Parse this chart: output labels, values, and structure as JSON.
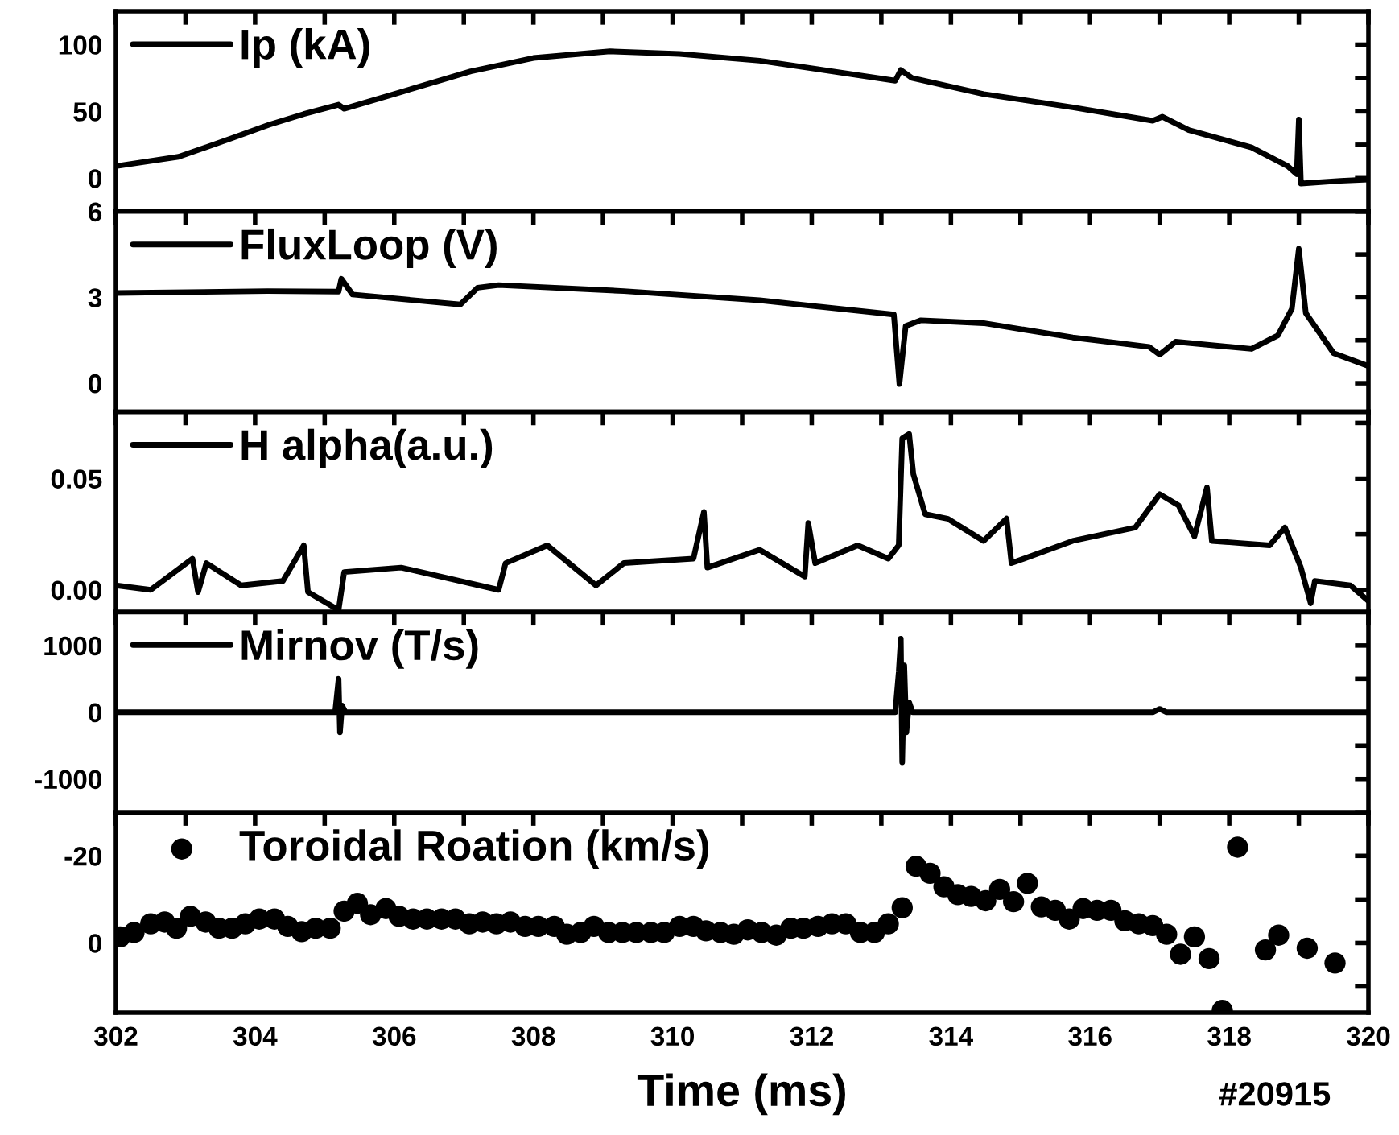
{
  "chart_data": [
    {
      "type": "line",
      "xlim": [
        302,
        320
      ],
      "xticks": [
        302,
        {
          "value": 303,
          "label": null
        },
        304,
        {
          "value": 305,
          "label": null
        },
        306,
        {
          "value": 307,
          "label": null
        },
        308,
        {
          "value": 309,
          "label": null
        },
        310,
        {
          "value": 311,
          "label": null
        },
        312,
        {
          "value": 313,
          "label": null
        },
        314,
        {
          "value": 315,
          "label": null
        },
        316,
        {
          "value": 317,
          "label": null
        },
        318,
        {
          "value": 319,
          "label": null
        },
        320
      ],
      "ylim": [
        -25,
        125
      ],
      "yticks": [
        0,
        {
          "value": 25,
          "label": null
        },
        50,
        {
          "value": 75,
          "label": null
        },
        100
      ],
      "tick_labels": "y",
      "legend": "top left",
      "x": [
        302,
        302.9,
        303.67,
        304.2,
        304.7,
        305.2,
        305.28,
        306,
        307.1,
        308.0,
        309.1,
        310.1,
        311.25,
        313.2,
        313.28,
        313.44,
        314.47,
        315.75,
        316.9,
        317.04,
        317.42,
        318.32,
        318.84,
        318.97,
        319.0,
        319.03,
        319.6,
        320
      ],
      "series": [
        {
          "name": "Ip (kA)",
          "color": "#000000",
          "values": [
            9,
            16,
            30,
            40,
            48,
            55,
            52,
            63,
            80,
            90,
            95,
            93,
            88,
            73,
            81,
            75,
            63,
            53,
            43,
            46,
            36,
            23,
            9,
            3,
            44,
            -4,
            -2,
            -1
          ]
        }
      ]
    },
    {
      "type": "line",
      "xlim": [
        302,
        320
      ],
      "xticks": [
        302,
        {
          "value": 303,
          "label": null
        },
        304,
        {
          "value": 305,
          "label": null
        },
        306,
        {
          "value": 307,
          "label": null
        },
        308,
        {
          "value": 309,
          "label": null
        },
        310,
        {
          "value": 311,
          "label": null
        },
        312,
        {
          "value": 313,
          "label": null
        },
        314,
        {
          "value": 315,
          "label": null
        },
        316,
        {
          "value": 317,
          "label": null
        },
        318,
        {
          "value": 319,
          "label": null
        },
        320
      ],
      "ylim": [
        -1,
        6
      ],
      "yticks": [
        0,
        {
          "value": 1.5,
          "label": null
        },
        3,
        {
          "value": 4.5,
          "label": null
        },
        6
      ],
      "tick_labels": "y",
      "legend": "top left",
      "x": [
        302,
        304.18,
        305.2,
        305.24,
        305.4,
        306.95,
        307.2,
        307.5,
        309.3,
        311.25,
        313.18,
        313.26,
        313.35,
        313.57,
        314.47,
        315.75,
        316.85,
        317.0,
        317.23,
        318.32,
        318.7,
        318.9,
        319.0,
        319.1,
        319.5,
        320
      ],
      "series": [
        {
          "name": "FluxLoop (V)",
          "color": "#000000",
          "values": [
            3.15,
            3.22,
            3.2,
            3.65,
            3.1,
            2.75,
            3.34,
            3.43,
            3.22,
            2.9,
            2.4,
            -0.03,
            2.0,
            2.2,
            2.1,
            1.6,
            1.27,
            1.0,
            1.45,
            1.2,
            1.67,
            2.6,
            4.7,
            2.45,
            1.05,
            0.6
          ]
        }
      ]
    },
    {
      "type": "line",
      "xlim": [
        302,
        320
      ],
      "xticks": [
        302,
        {
          "value": 303,
          "label": null
        },
        304,
        {
          "value": 305,
          "label": null
        },
        306,
        {
          "value": 307,
          "label": null
        },
        308,
        {
          "value": 309,
          "label": null
        },
        310,
        {
          "value": 311,
          "label": null
        },
        312,
        {
          "value": 313,
          "label": null
        },
        314,
        {
          "value": 315,
          "label": null
        },
        316,
        {
          "value": 317,
          "label": null
        },
        318,
        {
          "value": 319,
          "label": null
        },
        320
      ],
      "ylim": [
        -0.01,
        0.08
      ],
      "yticks": [
        {
          "value": 0,
          "label": "0.00"
        },
        {
          "value": 0.025,
          "label": null
        },
        0.05,
        {
          "value": 0.075,
          "label": null
        }
      ],
      "tick_labels": "y",
      "legend": "top left",
      "x": [
        302,
        302.5,
        303.1,
        303.18,
        303.3,
        303.8,
        304.4,
        304.7,
        304.76,
        305.2,
        305.28,
        306.1,
        307.5,
        307.6,
        308.2,
        308.9,
        309.3,
        310.3,
        310.45,
        310.5,
        311.25,
        311.9,
        311.95,
        312.05,
        312.66,
        313.1,
        313.25,
        313.3,
        313.4,
        313.46,
        313.63,
        313.95,
        314.47,
        314.8,
        314.87,
        315.75,
        316.65,
        317.0,
        317.27,
        317.5,
        317.68,
        317.75,
        318.58,
        318.8,
        319.03,
        319.17,
        319.23,
        319.74,
        320
      ],
      "series": [
        {
          "name": "H alpha(a.u.)",
          "color": "#000000",
          "values": [
            0.002,
            0,
            0.014,
            -0.001,
            0.012,
            0.002,
            0.004,
            0.02,
            -0.001,
            -0.009,
            0.008,
            0.01,
            0,
            0.012,
            0.02,
            0.002,
            0.012,
            0.014,
            0.035,
            0.01,
            0.018,
            0.006,
            0.03,
            0.012,
            0.02,
            0.014,
            0.02,
            0.068,
            0.07,
            0.052,
            0.034,
            0.032,
            0.022,
            0.032,
            0.012,
            0.022,
            0.028,
            0.043,
            0.038,
            0.024,
            0.046,
            0.022,
            0.02,
            0.028,
            0.01,
            -0.006,
            0.004,
            0.002,
            -0.005
          ]
        }
      ]
    },
    {
      "type": "line",
      "xlim": [
        302,
        320
      ],
      "xticks": [
        302,
        {
          "value": 303,
          "label": null
        },
        304,
        {
          "value": 305,
          "label": null
        },
        306,
        {
          "value": 307,
          "label": null
        },
        308,
        {
          "value": 309,
          "label": null
        },
        310,
        {
          "value": 311,
          "label": null
        },
        312,
        {
          "value": 313,
          "label": null
        },
        314,
        {
          "value": 315,
          "label": null
        },
        316,
        {
          "value": 317,
          "label": null
        },
        318,
        {
          "value": 319,
          "label": null
        },
        320
      ],
      "ylim": [
        -1500,
        1500
      ],
      "yticks": [
        -1000,
        {
          "value": -500,
          "label": null
        },
        0,
        {
          "value": 500,
          "label": null
        },
        1000
      ],
      "tick_labels": "y",
      "legend": "top left",
      "x": [
        302,
        305.15,
        305.2,
        305.22,
        305.25,
        305.3,
        313.2,
        313.25,
        313.28,
        313.3,
        313.33,
        313.36,
        313.4,
        313.45,
        316.9,
        317.0,
        317.1,
        320
      ],
      "series": [
        {
          "name": "Mirnov (T/s)",
          "color": "#000000",
          "values": [
            0,
            0,
            500,
            -300,
            100,
            0,
            0,
            600,
            1100,
            -750,
            700,
            -300,
            150,
            0,
            0,
            50,
            0,
            0
          ]
        }
      ]
    },
    {
      "type": "scatter",
      "xlim": [
        302,
        320
      ],
      "xticks": [
        302,
        {
          "value": 303,
          "label": null
        },
        304,
        {
          "value": 305,
          "label": null
        },
        306,
        {
          "value": 307,
          "label": null
        },
        308,
        {
          "value": 309,
          "label": null
        },
        310,
        {
          "value": 311,
          "label": null
        },
        312,
        {
          "value": 313,
          "label": null
        },
        314,
        {
          "value": 315,
          "label": null
        },
        316,
        {
          "value": 317,
          "label": null
        },
        318,
        {
          "value": 319,
          "label": null
        },
        320
      ],
      "ylim": [
        16,
        -30
      ],
      "yticks": [
        {
          "value": 10,
          "label": null
        },
        0,
        {
          "value": -10,
          "label": null
        },
        -20,
        {
          "value": -30,
          "label": null
        }
      ],
      "legend": "top left",
      "marker": "circle",
      "xlabel": "Time (ms)",
      "annotations": [
        "#20915"
      ],
      "x": [
        302.06,
        302.26,
        302.5,
        302.7,
        302.87,
        303.07,
        303.29,
        303.48,
        303.67,
        303.86,
        304.06,
        304.28,
        304.47,
        304.67,
        304.87,
        305.08,
        305.28,
        305.47,
        305.66,
        305.88,
        306.07,
        306.27,
        306.47,
        306.68,
        306.88,
        307.08,
        307.27,
        307.47,
        307.67,
        307.88,
        308.07,
        308.3,
        308.48,
        308.68,
        308.87,
        309.08,
        309.28,
        309.48,
        309.69,
        309.88,
        310.1,
        310.3,
        310.48,
        310.69,
        310.88,
        311.08,
        311.28,
        311.49,
        311.7,
        311.88,
        312.09,
        312.29,
        312.49,
        312.7,
        312.9,
        313.1,
        313.3,
        313.5,
        313.7,
        313.9,
        314.1,
        314.29,
        314.5,
        314.7,
        314.9,
        315.1,
        315.3,
        315.5,
        315.7,
        315.9,
        316.1,
        316.3,
        316.5,
        316.7,
        316.9,
        317.1,
        317.3,
        317.5,
        317.71,
        317.9,
        318.12,
        318.52,
        318.71,
        319.12,
        319.52
      ],
      "series": [
        {
          "name": "Toroidal Roation (km/s)",
          "color": "#000000",
          "values": [
            -1.4,
            -2.4,
            -4.4,
            -4.8,
            -3.4,
            -6.1,
            -4.8,
            -3.4,
            -3.4,
            -4.4,
            -5.5,
            -5.5,
            -3.8,
            -2.6,
            -3.4,
            -3.4,
            -7.3,
            -9.1,
            -6.5,
            -7.9,
            -6.1,
            -5.5,
            -5.5,
            -5.5,
            -5.5,
            -4.4,
            -4.8,
            -4.4,
            -4.8,
            -3.8,
            -3.8,
            -3.8,
            -2.0,
            -2.4,
            -3.8,
            -2.4,
            -2.4,
            -2.4,
            -2.4,
            -2.4,
            -3.8,
            -3.8,
            -2.8,
            -2.4,
            -2.0,
            -3.0,
            -2.4,
            -1.8,
            -3.4,
            -3.4,
            -3.8,
            -4.4,
            -4.4,
            -2.4,
            -2.4,
            -4.4,
            -8.1,
            -17.6,
            -16,
            -12.9,
            -11.1,
            -10.7,
            -9.7,
            -12.3,
            -9.5,
            -13.7,
            -8.3,
            -7.5,
            -5.5,
            -7.9,
            -7.5,
            -7.5,
            -5.1,
            -4.4,
            -4.0,
            -2.0,
            2.6,
            -1.4,
            3.6,
            15.5,
            -22,
            1.6,
            -1.8,
            1.2,
            4.6
          ]
        }
      ]
    }
  ]
}
